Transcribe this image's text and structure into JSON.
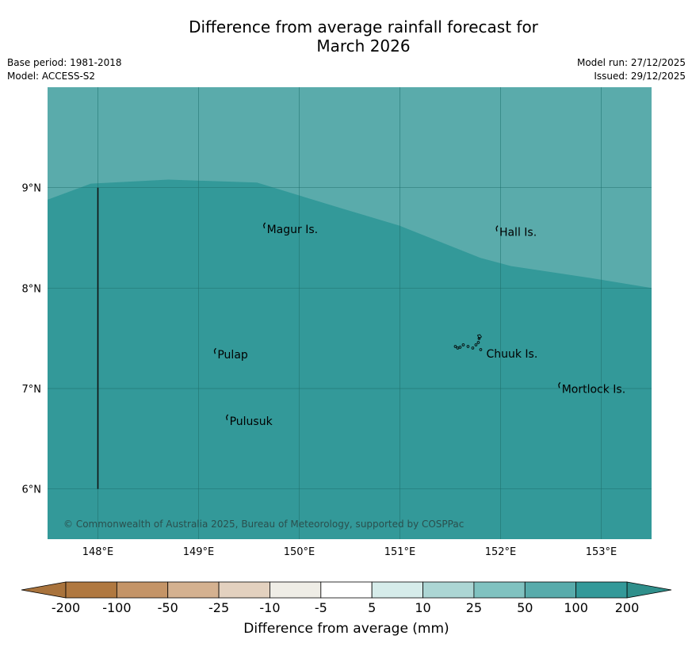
{
  "title": {
    "line1": "Difference from average rainfall forecast for",
    "line2": "March 2026"
  },
  "meta": {
    "base_period": "Base period: 1981-2018",
    "model": "Model: ACCESS-S2",
    "model_run": "Model run: 27/12/2025",
    "issued": "Issued: 29/12/2025"
  },
  "map": {
    "lon_ticks": [
      {
        "value": 148,
        "label": "148°E"
      },
      {
        "value": 149,
        "label": "149°E"
      },
      {
        "value": 150,
        "label": "150°E"
      },
      {
        "value": 151,
        "label": "151°E"
      },
      {
        "value": 152,
        "label": "152°E"
      },
      {
        "value": 153,
        "label": "153°E"
      }
    ],
    "lat_ticks": [
      {
        "value": 9,
        "label": "9°N"
      },
      {
        "value": 8,
        "label": "8°N"
      },
      {
        "value": 7,
        "label": "7°N"
      },
      {
        "value": 6,
        "label": "6°N"
      }
    ],
    "lon_range": [
      147.5,
      153.5
    ],
    "lat_range": [
      5.5,
      10.0
    ],
    "zones": [
      {
        "category": "50 to 100",
        "color": "#5aabab"
      },
      {
        "category": "100 to 200",
        "color": "#339999"
      }
    ],
    "boundary": [
      {
        "lon": 147.5,
        "lat": 8.88
      },
      {
        "lon": 147.93,
        "lat": 9.04
      },
      {
        "lon": 148.7,
        "lat": 9.08
      },
      {
        "lon": 149.58,
        "lat": 9.05
      },
      {
        "lon": 150.4,
        "lat": 8.8
      },
      {
        "lon": 151.0,
        "lat": 8.62
      },
      {
        "lon": 151.8,
        "lat": 8.3
      },
      {
        "lon": 152.1,
        "lat": 8.22
      },
      {
        "lon": 152.9,
        "lat": 8.1
      },
      {
        "lon": 153.5,
        "lat": 8.0
      }
    ],
    "divider_line": {
      "lon": 148.0,
      "lat_from": 6.0,
      "lat_to": 9.0
    },
    "places": [
      {
        "name": "Magur Is.",
        "lon": 149.67,
        "lat": 8.58
      },
      {
        "name": "Hall Is.",
        "lon": 151.98,
        "lat": 8.55
      },
      {
        "name": "Pulap",
        "lon": 149.18,
        "lat": 7.33
      },
      {
        "name": "Chuuk Is.",
        "lon": 151.85,
        "lat": 7.34
      },
      {
        "name": "Mortlock Is.",
        "lon": 152.6,
        "lat": 6.99
      },
      {
        "name": "Pulusuk",
        "lon": 149.3,
        "lat": 6.67
      }
    ],
    "copyright": "© Commonwealth of Australia 2025, Bureau of Meteorology, supported by COSPPac"
  },
  "colorbar": {
    "ticks": [
      "-200",
      "-100",
      "-50",
      "-25",
      "-10",
      "-5",
      "5",
      "10",
      "25",
      "50",
      "100",
      "200"
    ],
    "colors": [
      "#b07840",
      "#c49467",
      "#d4b190",
      "#e3d1bf",
      "#efede6",
      "#ffffff",
      "#d6ecea",
      "#acd6d4",
      "#80c2c0",
      "#58abab",
      "#339999"
    ],
    "under_color": "#a9733c",
    "over_color": "#2f8f8b",
    "label": "Difference from average (mm)"
  }
}
